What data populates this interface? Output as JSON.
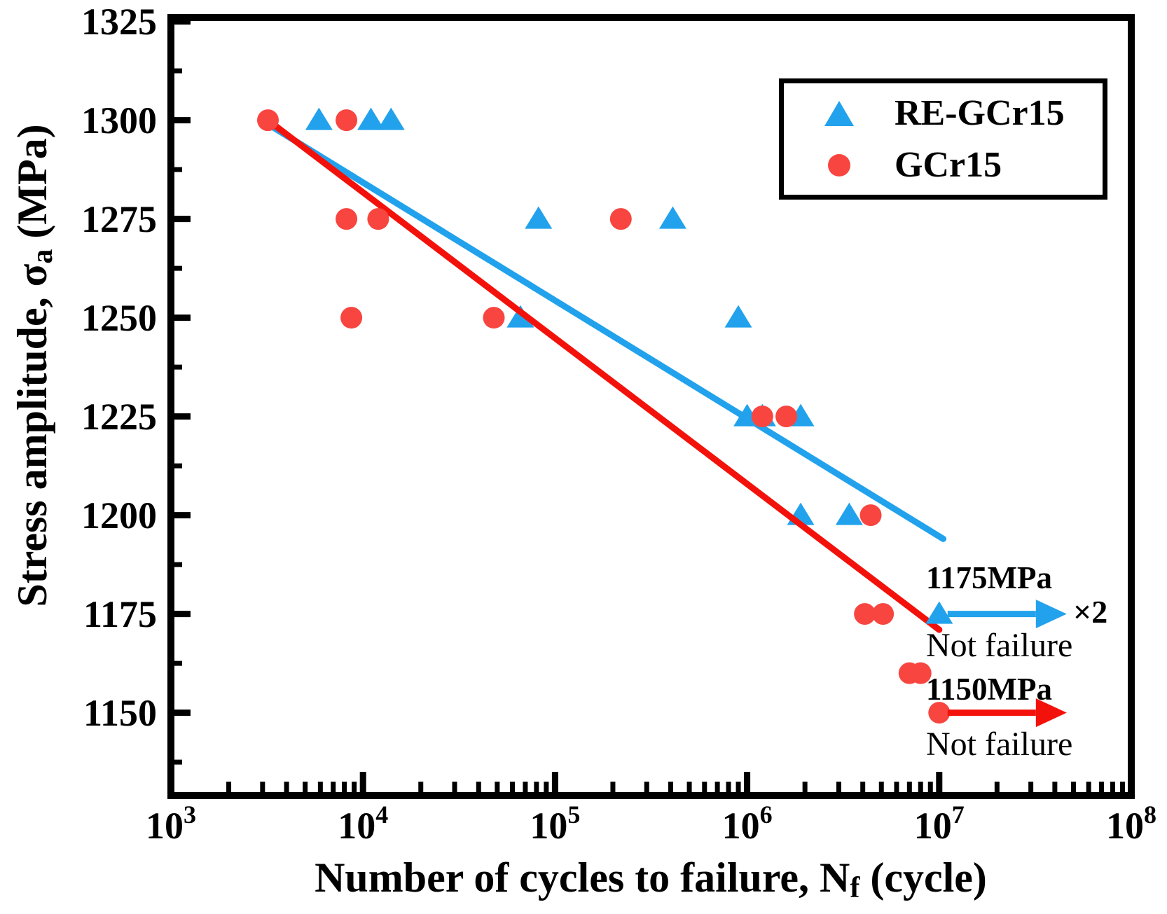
{
  "figure": {
    "background": "#FFFFFF",
    "frame_color": "#000000",
    "tick_color": "#000000"
  },
  "chart_data": {
    "type": "scatter",
    "title": "",
    "xlabel": {
      "prefix": "Number of cycles to failure, N",
      "sub": "f",
      "suffix": " (cycle)"
    },
    "ylabel": {
      "prefix": "Stress amplitude, σ",
      "sub": "a",
      "suffix": " (MPa)"
    },
    "x_scale": "log",
    "xlim": [
      1000,
      100000000
    ],
    "x_tick_base": "10",
    "x_tick_exponents": [
      3,
      4,
      5,
      6,
      7,
      8
    ],
    "x_minor_multiples": [
      2,
      3,
      4,
      5,
      6,
      7,
      8,
      9
    ],
    "ylim": [
      1125,
      1325
    ],
    "ylim_render": [
      1129,
      1326
    ],
    "y_ticks": [
      1150,
      1175,
      1200,
      1225,
      1250,
      1275,
      1300,
      1325
    ],
    "y_minor_ticks": [
      1137.5,
      1162.5,
      1187.5,
      1212.5,
      1237.5,
      1262.5,
      1287.5,
      1312.5
    ],
    "grid": false,
    "legend": {
      "position": "top-right"
    },
    "series": [
      {
        "name": "RE-GCr15",
        "marker": "triangle",
        "color": "#22A2EC",
        "line_color": "#22A2EC",
        "points": [
          [
            5900,
            1300
          ],
          [
            11000,
            1300
          ],
          [
            14000,
            1300
          ],
          [
            82000,
            1275
          ],
          [
            410000,
            1275
          ],
          [
            66000,
            1250
          ],
          [
            900000,
            1250
          ],
          [
            1000000,
            1225
          ],
          [
            1200000,
            1225
          ],
          [
            1900000,
            1225
          ],
          [
            1900000,
            1200
          ],
          [
            3400000,
            1200
          ]
        ],
        "fit_line": {
          "from": [
            3200,
            1299
          ],
          "to": [
            10500000,
            1194
          ]
        }
      },
      {
        "name": "GCr15",
        "marker": "circle",
        "color": "#F84540",
        "line_color": "#F3120B",
        "points": [
          [
            3200,
            1300
          ],
          [
            8200,
            1300
          ],
          [
            8200,
            1275
          ],
          [
            12000,
            1275
          ],
          [
            220000,
            1275
          ],
          [
            8700,
            1250
          ],
          [
            48000,
            1250
          ],
          [
            1200000,
            1225
          ],
          [
            1600000,
            1225
          ],
          [
            4400000,
            1200
          ],
          [
            4100000,
            1175
          ],
          [
            5100000,
            1175
          ],
          [
            7000000,
            1160
          ],
          [
            8000000,
            1160
          ]
        ],
        "fit_line": {
          "from": [
            3200,
            1300
          ],
          "to": [
            10000000,
            1171
          ]
        }
      }
    ],
    "runouts": [
      {
        "series": "RE-GCr15",
        "point": [
          10000000,
          1175
        ],
        "marker": "triangle",
        "color": "#22A2EC",
        "arrow_color": "#22A2EC",
        "stress_label": "1175MPa",
        "multiplier": "×2",
        "note": "Not failure"
      },
      {
        "series": "GCr15",
        "point": [
          10000000,
          1150
        ],
        "marker": "circle",
        "color": "#F84540",
        "arrow_color": "#F3120B",
        "stress_label": "1150MPa",
        "multiplier": "",
        "note": "Not failure"
      }
    ]
  }
}
